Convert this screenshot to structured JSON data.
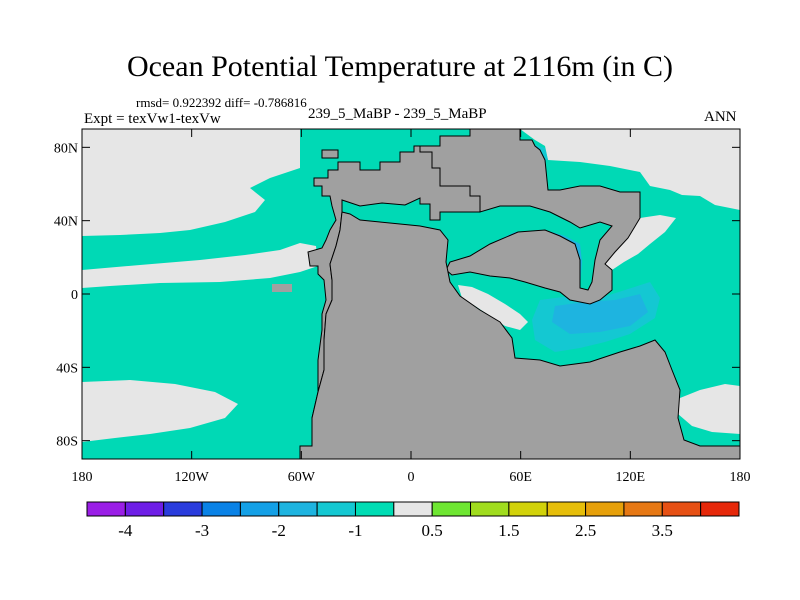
{
  "title": "Ocean Potential Temperature at 2116m (in C)",
  "stats": "rmsd= 0.922392 diff= -0.786816",
  "experiment": "Expt = texVw1-texVw",
  "case": "239_5_MaBP - 239_5_MaBP",
  "season": "ANN",
  "map": {
    "lat_range": [
      -90,
      90
    ],
    "lon_range": [
      -180,
      180
    ],
    "lat_ticks": [
      {
        "value": 80,
        "label": "80N"
      },
      {
        "value": 40,
        "label": "40N"
      },
      {
        "value": 0,
        "label": "0"
      },
      {
        "value": -40,
        "label": "40S"
      },
      {
        "value": -80,
        "label": "80S"
      }
    ],
    "lon_ticks": [
      {
        "value": -180,
        "label": "180"
      },
      {
        "value": -120,
        "label": "120W"
      },
      {
        "value": -60,
        "label": "60W"
      },
      {
        "value": 0,
        "label": "0"
      },
      {
        "value": 60,
        "label": "60E"
      },
      {
        "value": 120,
        "label": "120E"
      },
      {
        "value": 180,
        "label": "180"
      }
    ],
    "colors": {
      "land": "#a0a0a0",
      "ocean_fill": "#00d9b5",
      "near_zero": "#e6e6e6",
      "anomaly_mid": "#1eb4e0",
      "anomaly_strong": "#0a82e6",
      "anomaly_max": "#1e50dc"
    }
  },
  "colorbar": {
    "colors": [
      "#9a1ee6",
      "#6e1ee6",
      "#2a3cdc",
      "#0a82e6",
      "#14a0e6",
      "#1eb4e0",
      "#14c8d2",
      "#00dcb4",
      "#e6e6e6",
      "#6ee632",
      "#a0dc1e",
      "#d2d20a",
      "#e6be0a",
      "#e6a00a",
      "#e67814",
      "#e65014",
      "#e6280a"
    ],
    "labels": [
      {
        "index": 1,
        "text": "-4"
      },
      {
        "index": 3,
        "text": "-3"
      },
      {
        "index": 5,
        "text": "-2"
      },
      {
        "index": 7,
        "text": "-1"
      },
      {
        "index": 9,
        "text": "0.5"
      },
      {
        "index": 11,
        "text": "1.5"
      },
      {
        "index": 13,
        "text": "2.5"
      },
      {
        "index": 15,
        "text": "3.5"
      }
    ]
  }
}
